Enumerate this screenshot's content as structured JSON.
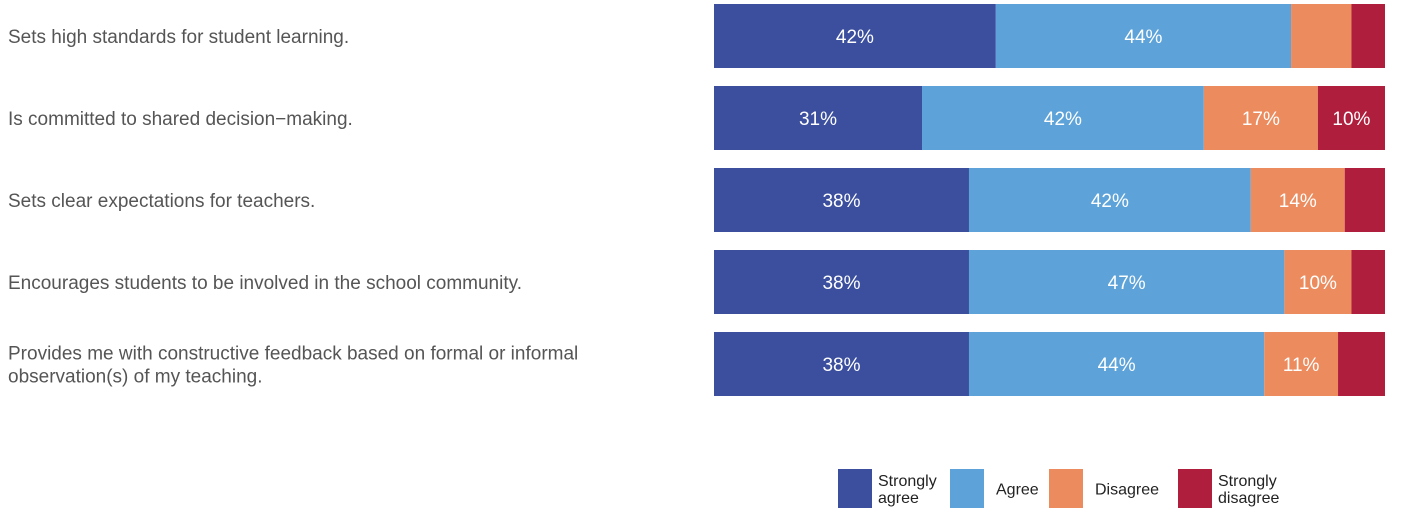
{
  "chart_data": {
    "type": "bar",
    "orientation": "horizontal",
    "stacked": true,
    "normalized": true,
    "grid": false,
    "legend_position": "bottom-right",
    "categories": [
      [
        "Sets high standards for student learning."
      ],
      [
        "Is committed to shared decision−making."
      ],
      [
        "Sets clear expectations for teachers."
      ],
      [
        "Encourages students to be involved in the school community."
      ],
      [
        "Provides me with constructive feedback based on formal or informal",
        "observation(s) of my teaching."
      ]
    ],
    "series": [
      {
        "name": "Strongly agree",
        "legend_lines": [
          "Strongly",
          "agree"
        ],
        "color": "#3b4f9e",
        "values": [
          42,
          31,
          38,
          38,
          38
        ],
        "labels": [
          "42%",
          "31%",
          "38%",
          "38%",
          "38%"
        ]
      },
      {
        "name": "Agree",
        "legend_lines": [
          "Agree"
        ],
        "color": "#5da3d9",
        "values": [
          44,
          42,
          42,
          47,
          44
        ],
        "labels": [
          "44%",
          "42%",
          "42%",
          "47%",
          "44%"
        ]
      },
      {
        "name": "Disagree",
        "legend_lines": [
          "Disagree"
        ],
        "color": "#ec8b5e",
        "values": [
          9,
          17,
          14,
          10,
          11
        ],
        "labels": [
          "",
          "17%",
          "14%",
          "10%",
          "11%"
        ]
      },
      {
        "name": "Strongly disagree",
        "legend_lines": [
          "Strongly",
          "disagree"
        ],
        "color": "#b01e3e",
        "values": [
          5,
          10,
          6,
          5,
          7
        ],
        "labels": [
          "",
          "10%",
          "",
          "",
          ""
        ]
      }
    ],
    "value_max": 100
  }
}
